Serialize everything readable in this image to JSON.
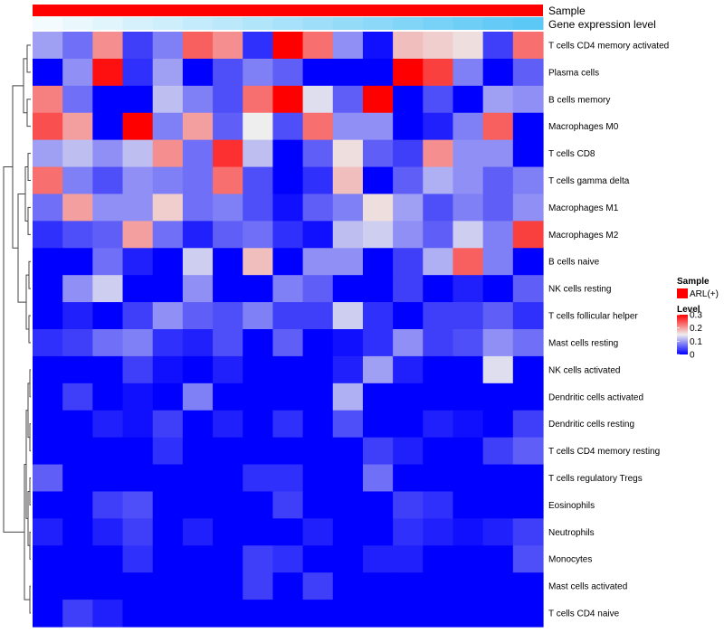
{
  "chart_data": {
    "type": "heatmap",
    "annotation_tracks": [
      {
        "name": "Sample",
        "color": "#FF0000"
      },
      {
        "name": "Gene expression level",
        "gradient": [
          "#F4FBFE",
          "#5BC8F5"
        ]
      }
    ],
    "rows": [
      "T cells CD4 memory activated",
      "Plasma cells",
      "B cells memory",
      "Macrophages M0",
      "T cells CD8",
      "T cells gamma delta",
      "Macrophages M1",
      "Macrophages M2",
      "B cells naive",
      "NK cells resting",
      "T cells follicular helper",
      "Mast cells resting",
      "NK cells activated",
      "Dendritic cells activated",
      "Dendritic cells resting",
      "T cells CD4 memory resting",
      "T cells regulatory  Tregs",
      "Eosinophils",
      "Neutrophils",
      "Monocytes",
      "Mast cells activated",
      "T cells CD4 naive"
    ],
    "columns": 17,
    "values": [
      [
        0.1,
        0.07,
        0.21,
        0.04,
        0.08,
        0.24,
        0.21,
        0.03,
        0.3,
        0.23,
        0.09,
        0.01,
        0.18,
        0.17,
        0.16,
        0.04,
        0.23
      ],
      [
        0.0,
        0.09,
        0.29,
        0.03,
        0.1,
        0.0,
        0.05,
        0.08,
        0.06,
        0.0,
        0.0,
        0.0,
        0.3,
        0.26,
        0.08,
        0.0,
        0.06
      ],
      [
        0.22,
        0.07,
        0.0,
        0.0,
        0.12,
        0.08,
        0.05,
        0.23,
        0.3,
        0.14,
        0.06,
        0.3,
        0.0,
        0.05,
        0.0,
        0.1,
        0.09
      ],
      [
        0.25,
        0.2,
        0.0,
        0.3,
        0.08,
        0.2,
        0.06,
        0.15,
        0.05,
        0.23,
        0.09,
        0.09,
        0.0,
        0.02,
        0.08,
        0.24,
        0.0
      ],
      [
        0.1,
        0.12,
        0.09,
        0.12,
        0.21,
        0.07,
        0.27,
        0.12,
        0.0,
        0.06,
        0.16,
        0.06,
        0.04,
        0.21,
        0.09,
        0.09,
        0.0
      ],
      [
        0.23,
        0.08,
        0.05,
        0.09,
        0.08,
        0.07,
        0.23,
        0.05,
        0.0,
        0.03,
        0.18,
        0.0,
        0.06,
        0.11,
        0.09,
        0.06,
        0.08
      ],
      [
        0.07,
        0.2,
        0.09,
        0.09,
        0.17,
        0.07,
        0.08,
        0.05,
        0.01,
        0.06,
        0.08,
        0.16,
        0.1,
        0.05,
        0.08,
        0.06,
        0.09
      ],
      [
        0.03,
        0.05,
        0.06,
        0.2,
        0.07,
        0.02,
        0.06,
        0.07,
        0.03,
        0.01,
        0.12,
        0.13,
        0.09,
        0.06,
        0.13,
        0.08,
        0.26
      ],
      [
        0.0,
        0.0,
        0.07,
        0.02,
        0.0,
        0.13,
        0.0,
        0.18,
        0.0,
        0.09,
        0.09,
        0.0,
        0.04,
        0.11,
        0.24,
        0.08,
        0.0
      ],
      [
        0.0,
        0.09,
        0.13,
        0.0,
        0.0,
        0.09,
        0.0,
        0.0,
        0.08,
        0.06,
        0.0,
        0.0,
        0.04,
        0.0,
        0.02,
        0.0,
        0.06
      ],
      [
        0.0,
        0.02,
        0.0,
        0.04,
        0.09,
        0.06,
        0.05,
        0.08,
        0.04,
        0.04,
        0.13,
        0.03,
        0.0,
        0.04,
        0.04,
        0.06,
        0.03
      ],
      [
        0.03,
        0.04,
        0.07,
        0.08,
        0.03,
        0.02,
        0.05,
        0.0,
        0.06,
        0.0,
        0.01,
        0.03,
        0.09,
        0.04,
        0.05,
        0.09,
        0.07
      ],
      [
        0.0,
        0.0,
        0.0,
        0.04,
        0.01,
        0.0,
        0.02,
        0.0,
        0.0,
        0.0,
        0.02,
        0.1,
        0.02,
        0.0,
        0.0,
        0.14,
        0.0
      ],
      [
        0.0,
        0.04,
        0.0,
        0.01,
        0.0,
        0.08,
        0.0,
        0.0,
        0.0,
        0.0,
        0.11,
        0.0,
        0.0,
        0.0,
        0.0,
        0.0,
        0.0
      ],
      [
        0.0,
        0.0,
        0.02,
        0.01,
        0.04,
        0.0,
        0.02,
        0.0,
        0.03,
        0.0,
        0.05,
        0.0,
        0.0,
        0.02,
        0.01,
        0.0,
        0.04
      ],
      [
        0.0,
        0.0,
        0.0,
        0.0,
        0.03,
        0.0,
        0.0,
        0.0,
        0.0,
        0.0,
        0.0,
        0.04,
        0.02,
        0.0,
        0.0,
        0.04,
        0.06
      ],
      [
        0.06,
        0.0,
        0.0,
        0.0,
        0.0,
        0.0,
        0.0,
        0.03,
        0.03,
        0.0,
        0.0,
        0.07,
        0.0,
        0.0,
        0.0,
        0.0,
        0.0
      ],
      [
        0.0,
        0.0,
        0.04,
        0.05,
        0.0,
        0.0,
        0.0,
        0.0,
        0.04,
        0.0,
        0.0,
        0.0,
        0.04,
        0.03,
        0.0,
        0.0,
        0.0
      ],
      [
        0.02,
        0.0,
        0.02,
        0.04,
        0.0,
        0.02,
        0.0,
        0.0,
        0.0,
        0.02,
        0.0,
        0.0,
        0.03,
        0.02,
        0.01,
        0.02,
        0.04
      ],
      [
        0.0,
        0.0,
        0.0,
        0.03,
        0.0,
        0.0,
        0.0,
        0.04,
        0.03,
        0.0,
        0.0,
        0.02,
        0.02,
        0.0,
        0.0,
        0.0,
        0.05
      ],
      [
        0.0,
        0.0,
        0.0,
        0.0,
        0.0,
        0.0,
        0.0,
        0.04,
        0.0,
        0.04,
        0.0,
        0.0,
        0.0,
        0.0,
        0.0,
        0.0,
        0.0
      ],
      [
        0.0,
        0.04,
        0.02,
        0.0,
        0.0,
        0.0,
        0.0,
        0.0,
        0.0,
        0.0,
        0.0,
        0.0,
        0.0,
        0.0,
        0.0,
        0.0,
        0.0
      ]
    ],
    "color_scale": {
      "min": 0,
      "mid": 0.15,
      "max": 0.3,
      "colors": [
        "#0000FF",
        "#EEEEEE",
        "#FF0000"
      ]
    },
    "legend": {
      "position": "right",
      "sample_title": "Sample",
      "sample_entry": "ARL(+)",
      "level_title": "Level",
      "level_ticks": [
        {
          "value": 0.3,
          "label": "0.3"
        },
        {
          "value": 0.2,
          "label": "0.2"
        },
        {
          "value": 0.1,
          "label": "0.1"
        },
        {
          "value": 0.0,
          "label": "0"
        }
      ]
    },
    "row_dendrogram": true
  }
}
